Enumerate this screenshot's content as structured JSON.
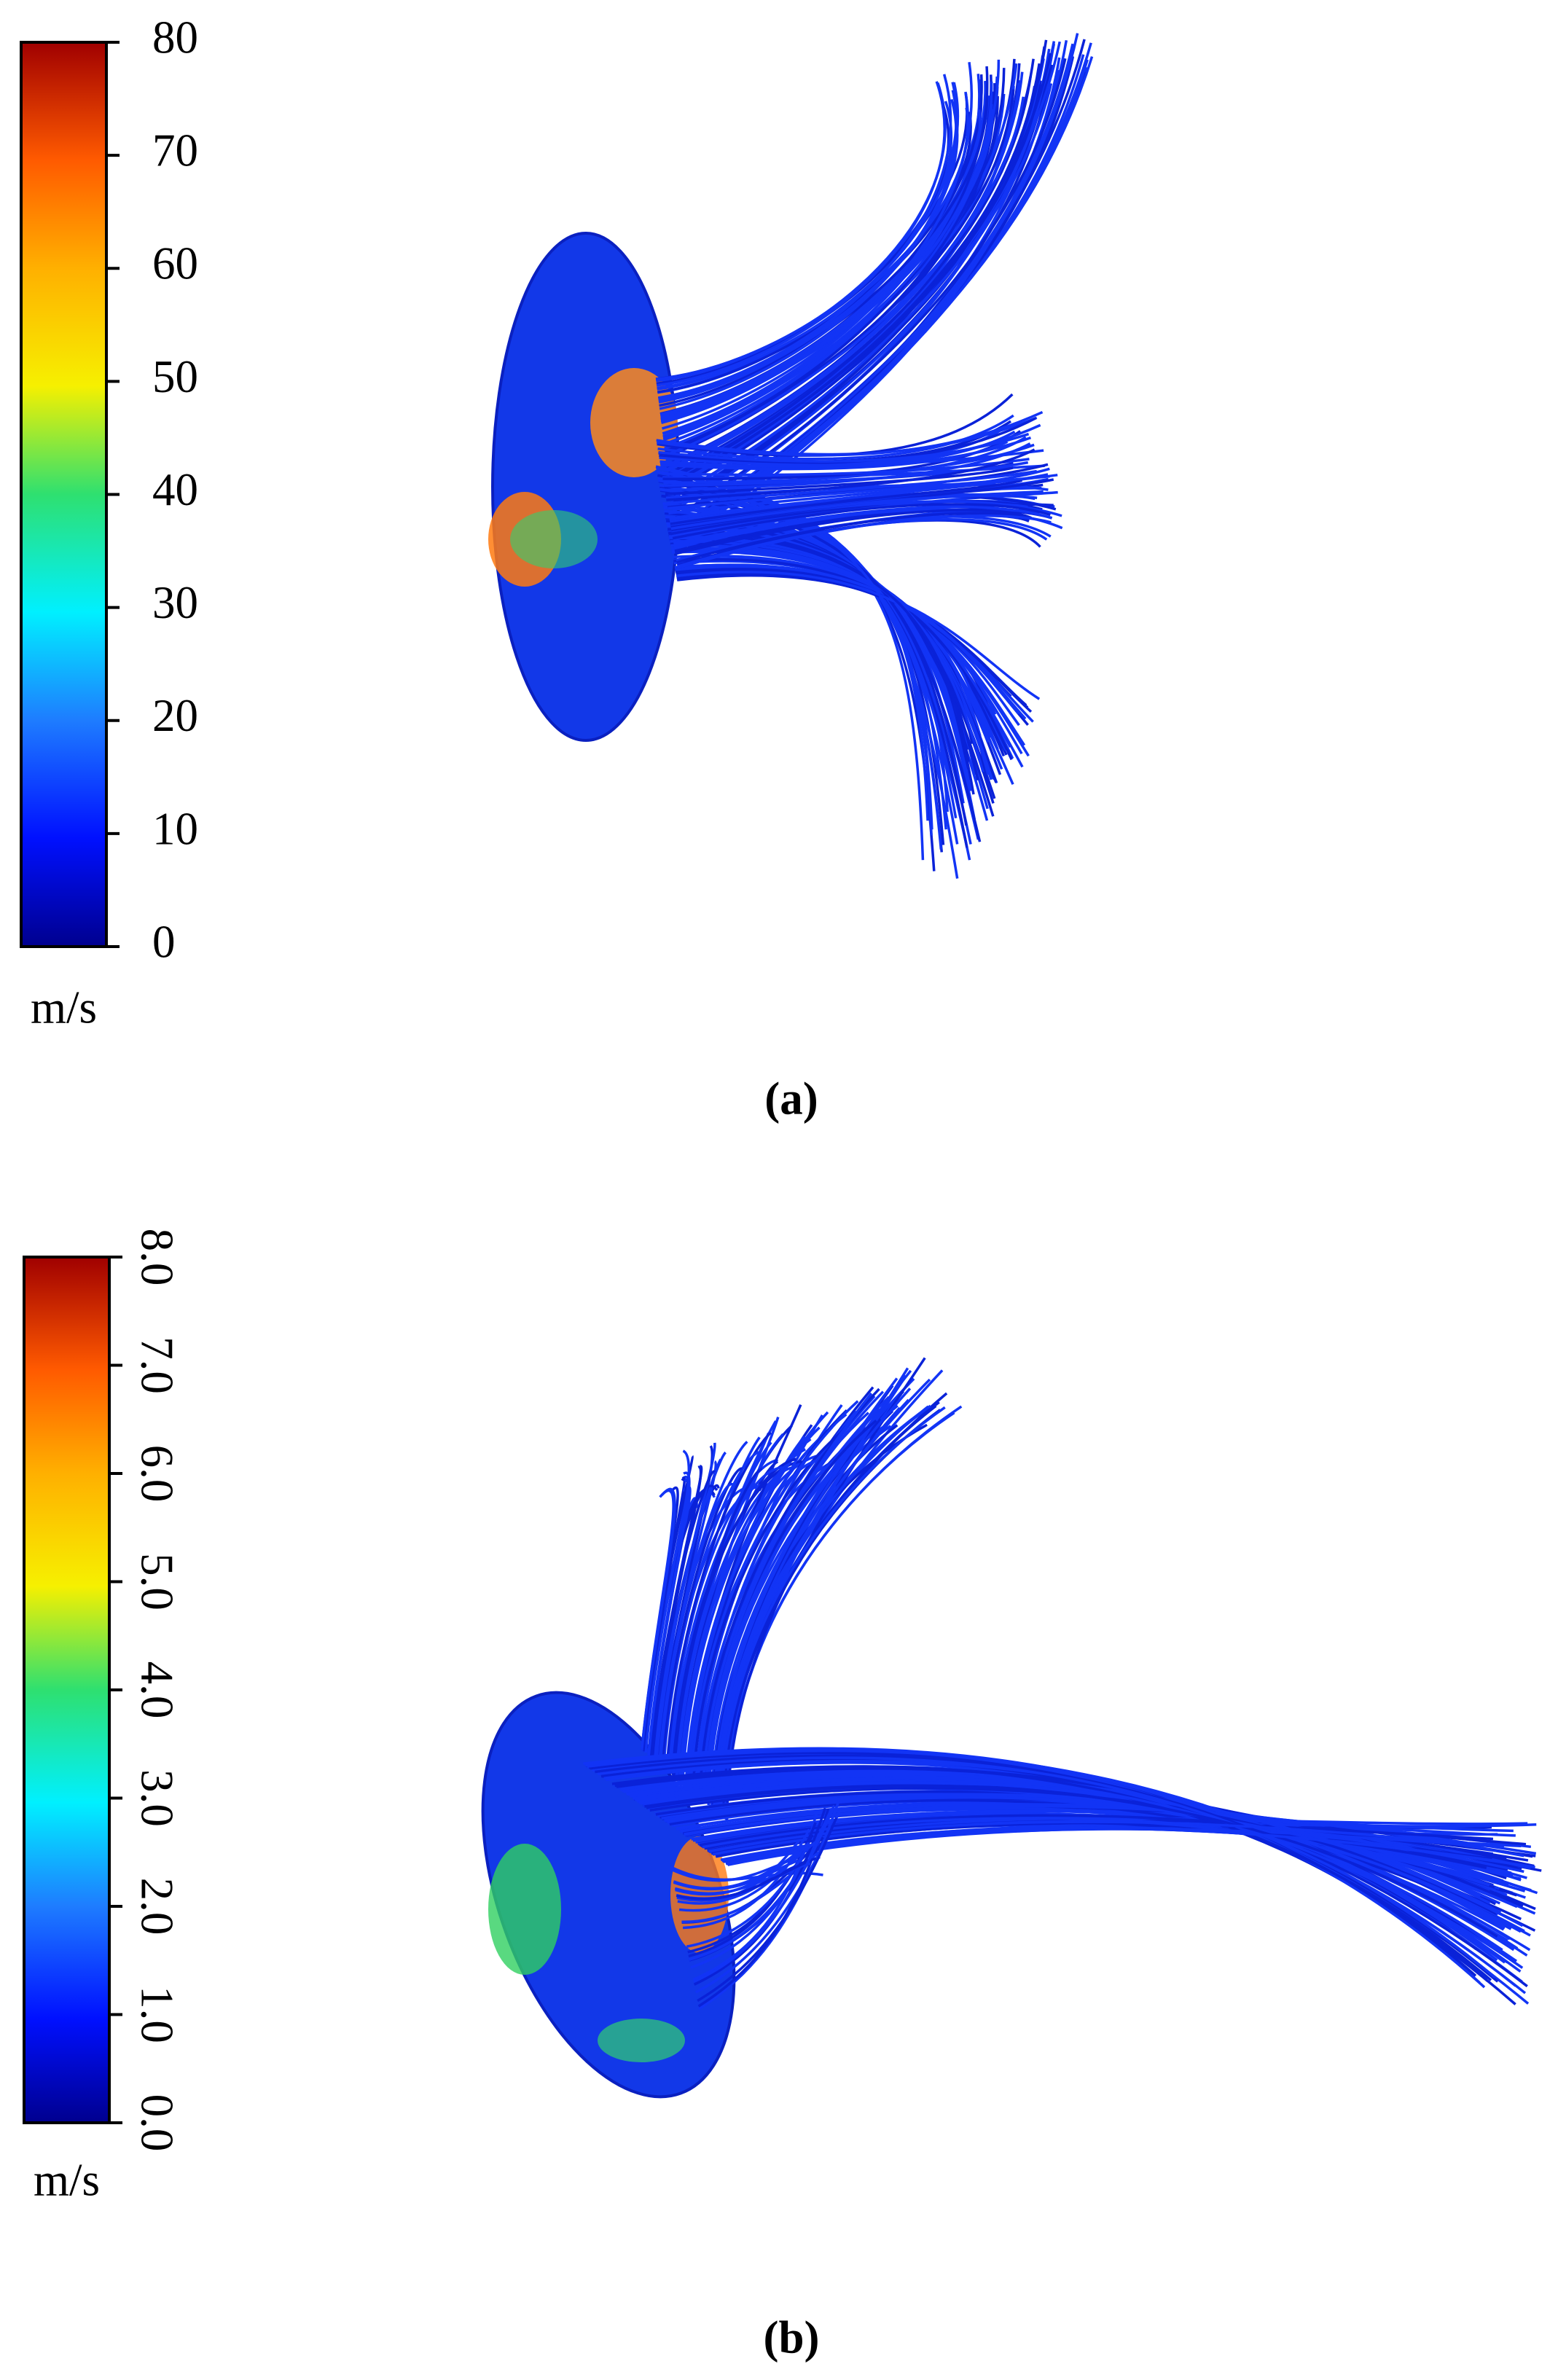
{
  "panels": [
    {
      "colorbar": {
        "lim": [
          0,
          80
        ],
        "ticks": [
          0,
          10,
          20,
          30,
          40,
          50,
          60,
          70,
          80
        ],
        "unit": "m/s"
      },
      "caption": "(a)"
    },
    {
      "colorbar": {
        "lim": [
          0,
          8
        ],
        "ticks": [
          {
            "value": 0,
            "label": "0.0"
          },
          {
            "value": 1,
            "label": "1.0"
          },
          {
            "value": 2,
            "label": "2.0"
          },
          {
            "value": 3,
            "label": "3.0"
          },
          {
            "value": 4,
            "label": "4.0"
          },
          {
            "value": 5,
            "label": "5.0"
          },
          {
            "value": 6,
            "label": "6.0"
          },
          {
            "value": 7,
            "label": "7.0"
          },
          {
            "value": 8,
            "label": "8.0"
          }
        ],
        "unit": "m/s"
      },
      "caption": "(b)"
    }
  ]
}
